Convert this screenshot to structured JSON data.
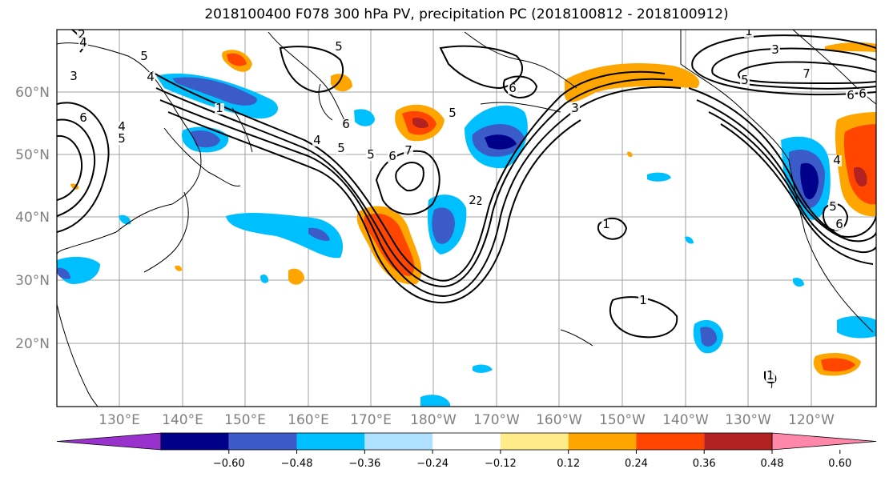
{
  "title": "2018100400 F078 300 hPa PV, precipitation PC (2018100812 - 2018100912)",
  "map": {
    "lat_labels": [
      "60°N",
      "50°N",
      "40°N",
      "30°N",
      "20°N"
    ],
    "lon_labels": [
      "130°E",
      "140°E",
      "150°E",
      "160°E",
      "170°E",
      "180°W",
      "170°W",
      "160°W",
      "150°W",
      "140°W",
      "130°W",
      "120°W"
    ]
  },
  "contour_labels": [
    "2",
    "4",
    "5",
    "3",
    "4",
    "6",
    "4",
    "5",
    "1",
    "4",
    "5",
    "5",
    "6",
    "7",
    "2",
    "6",
    "5",
    "6",
    "3",
    "2",
    "1",
    "1",
    "1",
    "5",
    "7",
    "6",
    "4",
    "5",
    "6",
    "1",
    "6",
    "5",
    "3"
  ],
  "colorbar": {
    "colors": [
      "#9932CC",
      "#00008B",
      "#3A5BC8",
      "#00BFFF",
      "#B0E0FF",
      "#FFFFFF",
      "#FFEB8A",
      "#FFA500",
      "#FF4500",
      "#B22222",
      "#FF88AA"
    ],
    "ticks": [
      "−0.60",
      "−0.48",
      "−0.36",
      "−0.24",
      "−0.12",
      "0.12",
      "0.24",
      "0.36",
      "0.48",
      "0.60"
    ]
  }
}
